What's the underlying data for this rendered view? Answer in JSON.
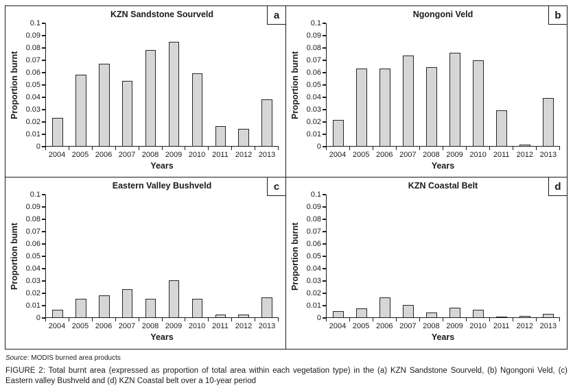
{
  "colors": {
    "bar-fill": "#d6d6d6",
    "bar-border": "#262626",
    "axis": "#1a1a1a",
    "text": "#1a1a1a"
  },
  "chart_data": [
    {
      "type": "bar",
      "panel_label": "a",
      "title": "KZN Sandstone Sourveld",
      "xlabel": "Years",
      "ylabel": "Proportion burnt",
      "categories": [
        "2004",
        "2005",
        "2006",
        "2007",
        "2008",
        "2009",
        "2010",
        "2011",
        "2012",
        "2013"
      ],
      "values": [
        0.023,
        0.058,
        0.067,
        0.053,
        0.078,
        0.085,
        0.059,
        0.016,
        0.014,
        0.038
      ],
      "ylim": [
        0,
        0.1
      ],
      "y_ticks": [
        "0.1",
        "0.09",
        "0.08",
        "0.07",
        "0.06",
        "0.05",
        "0.04",
        "0.03",
        "0.02",
        "0.01",
        "0"
      ],
      "grid": false,
      "legend": false
    },
    {
      "type": "bar",
      "panel_label": "b",
      "title": "Ngongoni Veld",
      "xlabel": "Years",
      "ylabel": "Proportion burnt",
      "categories": [
        "2004",
        "2005",
        "2006",
        "2007",
        "2008",
        "2009",
        "2010",
        "2011",
        "2012",
        "2013"
      ],
      "values": [
        0.021,
        0.063,
        0.063,
        0.074,
        0.064,
        0.076,
        0.07,
        0.029,
        0.001,
        0.039
      ],
      "ylim": [
        0,
        0.1
      ],
      "y_ticks": [
        "0.1",
        "0.09",
        "0.08",
        "0.07",
        "0.06",
        "0.05",
        "0.04",
        "0.03",
        "0.02",
        "0.01",
        "0"
      ],
      "grid": false,
      "legend": false
    },
    {
      "type": "bar",
      "panel_label": "c",
      "title": "Eastern Valley Bushveld",
      "xlabel": "Years",
      "ylabel": "Proportion bumt",
      "categories": [
        "2004",
        "2005",
        "2006",
        "2007",
        "2008",
        "2009",
        "2010",
        "2011",
        "2012",
        "2013"
      ],
      "values": [
        0.006,
        0.015,
        0.018,
        0.023,
        0.015,
        0.03,
        0.015,
        0.002,
        0.002,
        0.016
      ],
      "ylim": [
        0,
        0.1
      ],
      "y_ticks": [
        "0.1",
        "0.09",
        "0.08",
        "0.07",
        "0.06",
        "0.05",
        "0.04",
        "0.03",
        "0.02",
        "0.01",
        "0"
      ],
      "grid": false,
      "legend": false
    },
    {
      "type": "bar",
      "panel_label": "d",
      "title": "KZN Coastal Belt",
      "xlabel": "Years",
      "ylabel": "Proportion burnt",
      "categories": [
        "2004",
        "2005",
        "2006",
        "2007",
        "2008",
        "2009",
        "2010",
        "2011",
        "2012",
        "2013"
      ],
      "values": [
        0.005,
        0.007,
        0.016,
        0.01,
        0.004,
        0.008,
        0.006,
        0.0005,
        0.001,
        0.003
      ],
      "ylim": [
        0,
        0.1
      ],
      "y_ticks": [
        "0.1",
        "0.09",
        "0.08",
        "0.07",
        "0.06",
        "0.05",
        "0.04",
        "0.03",
        "0.02",
        "0.01",
        "0"
      ],
      "grid": false,
      "legend": false
    }
  ],
  "source_note": {
    "label": "Source",
    "text": ": MODIS burned area products"
  },
  "caption": "FIGURE 2: Total burnt area (expressed as proportion of total area within each vegetation type) in the (a) KZN Sandstone Sourveld, (b) Ngongoni Veld, (c) Eastern valley Bushveld and (d) KZN Coastal belt over a 10-year period"
}
